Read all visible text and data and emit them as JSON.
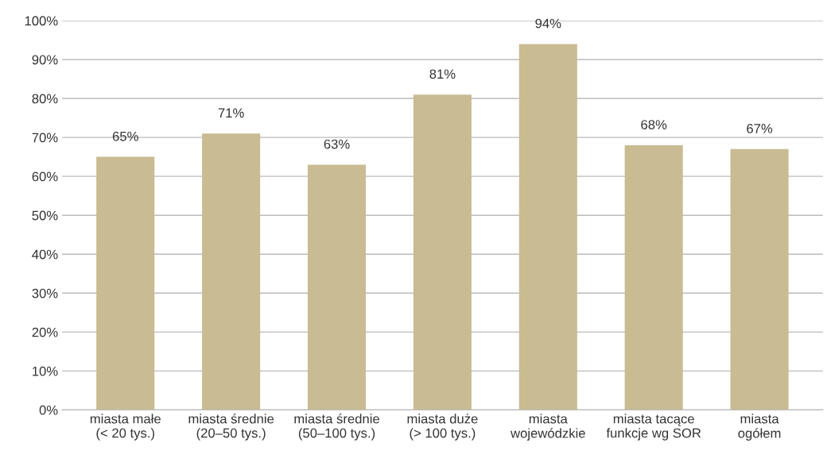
{
  "chart_data": {
    "type": "bar",
    "categories": [
      "miasta małe\n(< 20 tys.)",
      "miasta średnie\n(20–50 tys.)",
      "miasta średnie\n(50–100 tys.)",
      "miasta duże\n(> 100 tys.)",
      "miasta\nwojewódzkie",
      "miasta tacące\nfunkcje wg SOR",
      "miasta\nogółem"
    ],
    "values": [
      65,
      71,
      63,
      81,
      94,
      68,
      67
    ],
    "color": "#c9bb92",
    "ylim": [
      0,
      100
    ],
    "yticks": [
      {
        "value": 0,
        "label": "0%"
      },
      {
        "value": 10,
        "label": "10%"
      },
      {
        "value": 20,
        "label": "20%"
      },
      {
        "value": 30,
        "label": "30%"
      },
      {
        "value": 40,
        "label": "40%"
      },
      {
        "value": 50,
        "label": "50%"
      },
      {
        "value": 60,
        "label": "60%"
      },
      {
        "value": 70,
        "label": "70%"
      },
      {
        "value": 80,
        "label": "80%"
      },
      {
        "value": 90,
        "label": "90%"
      },
      {
        "value": 100,
        "label": "100%"
      }
    ],
    "value_labels": [
      "65%",
      "71%",
      "63%",
      "81%",
      "94%",
      "68%",
      "67%"
    ],
    "grid": "y"
  }
}
